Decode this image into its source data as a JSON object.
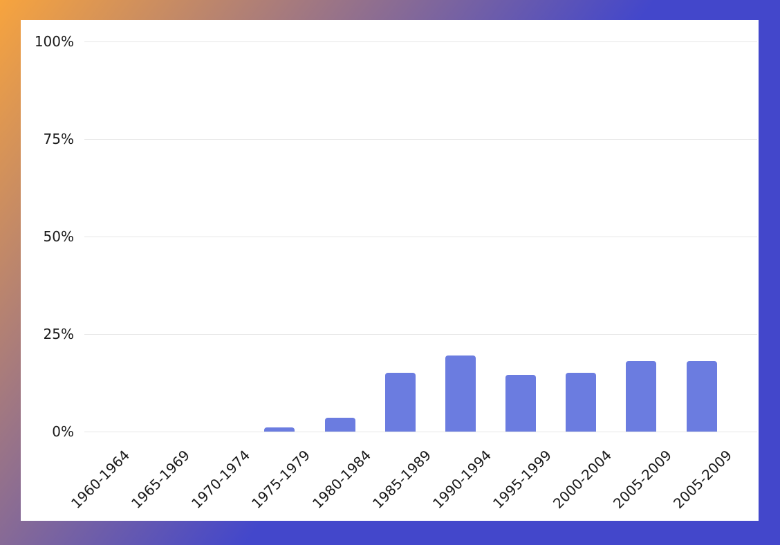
{
  "chart_data": {
    "type": "bar",
    "title": "",
    "xlabel": "",
    "ylabel": "",
    "categories": [
      "1960-1964",
      "1965-1969",
      "1970-1974",
      "1975-1979",
      "1980-1984",
      "1985-1989",
      "1990-1994",
      "1995-1999",
      "2000-2004",
      "2005-2009",
      "2005-2009"
    ],
    "values": [
      0,
      0,
      0,
      1,
      3.5,
      15,
      19.5,
      14.5,
      15,
      18,
      18
    ],
    "ylim": [
      0,
      100
    ],
    "ytick_values": [
      0,
      25,
      50,
      75,
      100
    ],
    "ytick_labels": [
      "0%",
      "25%",
      "50%",
      "75%",
      "100%"
    ],
    "grid": true,
    "legend_position": "none",
    "bar_color": "#6b7ce0",
    "plot_background": "#ffffff"
  },
  "frame": {
    "gradient_start_color": "#f7a43e",
    "gradient_end_color": "#4347cb"
  }
}
